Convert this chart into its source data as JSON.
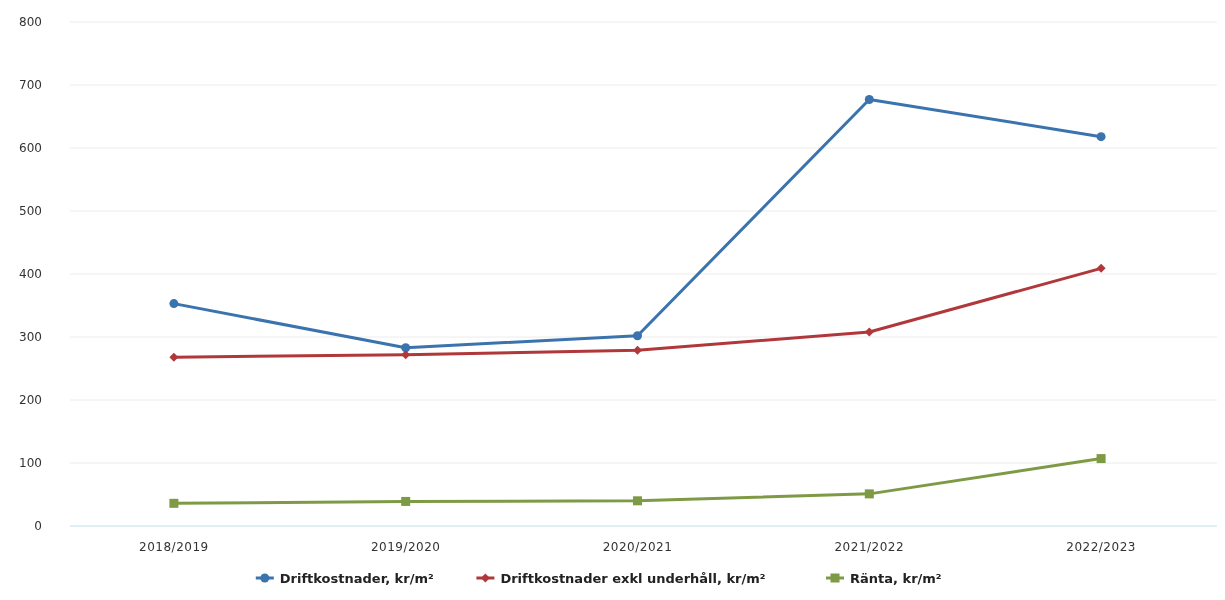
{
  "chart_data": {
    "type": "line",
    "categories": [
      "2018/2019",
      "2019/2020",
      "2020/2021",
      "2021/2022",
      "2022/2023"
    ],
    "series": [
      {
        "name": "Driftkostnader, kr/m²",
        "color": "#3a73ad",
        "marker": "circle",
        "values": [
          353,
          283,
          302,
          677,
          618
        ]
      },
      {
        "name": "Driftkostnader exkl underhåll, kr/m²",
        "color": "#b0383a",
        "marker": "diamond",
        "values": [
          268,
          272,
          279,
          308,
          409
        ]
      },
      {
        "name": "Ränta, kr/m²",
        "color": "#7f9a45",
        "marker": "square",
        "values": [
          36,
          39,
          40,
          51,
          107
        ]
      }
    ],
    "ylim": [
      0,
      800
    ],
    "yticks": [
      0,
      100,
      200,
      300,
      400,
      500,
      600,
      700,
      800
    ],
    "grid": "y",
    "legend": "bottom"
  }
}
